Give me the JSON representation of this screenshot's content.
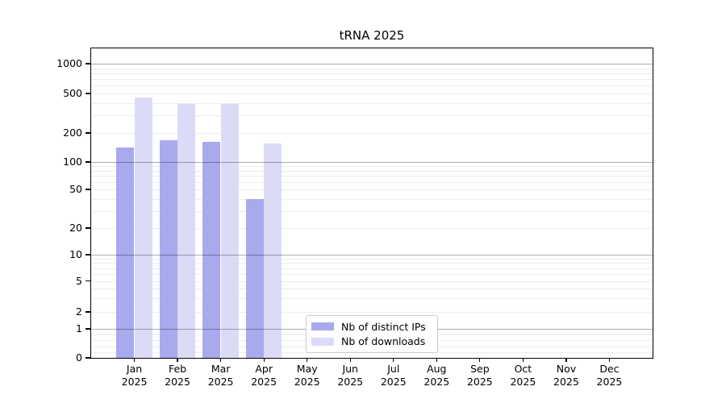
{
  "chart_data": {
    "type": "bar",
    "title": "tRNA 2025",
    "categories": [
      "Jan",
      "Feb",
      "Mar",
      "Apr",
      "May",
      "Jun",
      "Jul",
      "Aug",
      "Sep",
      "Oct",
      "Nov",
      "Dec"
    ],
    "year_label": "2025",
    "series": [
      {
        "name": "Nb of distinct IPs",
        "color": "#a9a9ee",
        "values": [
          142,
          168,
          162,
          40,
          0,
          0,
          0,
          0,
          0,
          0,
          0,
          0
        ]
      },
      {
        "name": "Nb of downloads",
        "color": "#dbdbf8",
        "values": [
          455,
          390,
          390,
          155,
          0,
          0,
          0,
          0,
          0,
          0,
          0,
          0
        ]
      }
    ],
    "y_axis": {
      "ticks": [
        0,
        1,
        2,
        5,
        10,
        20,
        50,
        100,
        200,
        500,
        1000
      ],
      "scale": "pseudo-log",
      "range": [
        0,
        1430
      ]
    },
    "x_axis": {
      "tick_label_format": "Month over 2025"
    },
    "grid": {
      "horizontal": true,
      "major_at": [
        1,
        10,
        100,
        1000
      ],
      "minor": "2-9 per decade plus 0.2-0.8 below 1",
      "drawn_over_bars": true
    },
    "legend": {
      "position": "bottom-center",
      "border": true
    }
  }
}
